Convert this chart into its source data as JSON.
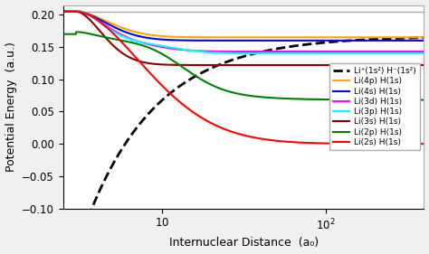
{
  "xlabel": "Internuclear Distance  (a₀)",
  "ylabel": "Potential Energy  (a.u.)",
  "xlim": [
    2.5,
    400
  ],
  "ylim": [
    -0.1,
    0.215
  ],
  "yticks": [
    -0.1,
    -0.05,
    0.0,
    0.05,
    0.1,
    0.15,
    0.2
  ],
  "background_color": "#f0f0f0",
  "plot_bg": "#ffffff",
  "legend_entries": [
    {
      "label": "Li⁺(1s²) H⁻(1s²)",
      "color": "black",
      "linestyle": "--"
    },
    {
      "label": "Li(4p) H(1s)",
      "color": "#FFA500",
      "linestyle": "-"
    },
    {
      "label": "Li(4s) H(1s)",
      "color": "blue",
      "linestyle": "-"
    },
    {
      "label": "Li(3d) H(1s)",
      "color": "magenta",
      "linestyle": "-"
    },
    {
      "label": "Li(3p) H(1s)",
      "color": "cyan",
      "linestyle": "-"
    },
    {
      "label": "Li(3s) H(1s)",
      "color": "#8B0000",
      "linestyle": "-"
    },
    {
      "label": "Li(2p) H(1s)",
      "color": "green",
      "linestyle": "-"
    },
    {
      "label": "Li(2s) H(1s)",
      "color": "red",
      "linestyle": "-"
    }
  ]
}
